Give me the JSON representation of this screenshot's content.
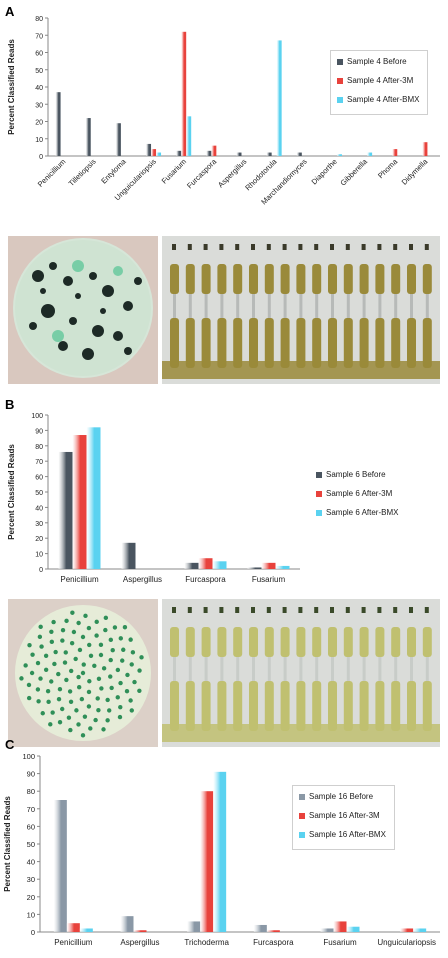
{
  "panels": [
    {
      "letter": "A",
      "chart_data": {
        "type": "bar",
        "ylabel": "Percent Classified Reads",
        "xlabel": "",
        "ylim": [
          0,
          80
        ],
        "yticks": [
          0,
          10,
          20,
          30,
          40,
          50,
          60,
          70,
          80
        ],
        "grid": false,
        "legend_position": "right",
        "categories": [
          "Penicillium",
          "Tilletiopsis",
          "Entyloma",
          "Unguiculariopsis",
          "Fusarium",
          "Furcaspora",
          "Aspergillus",
          "Rhodotorula",
          "Marchandiomyces",
          "Diaporthe",
          "Gibberella",
          "Phoma",
          "Didymella"
        ],
        "series": [
          {
            "name": "Sample 4 Before",
            "color": "#4a5560",
            "values": [
              37,
              22,
              19,
              7,
              3,
              3,
              2,
              2,
              2,
              0,
              0,
              0,
              0
            ]
          },
          {
            "name": "Sample 4 After-3M",
            "color": "#e8423c",
            "values": [
              0,
              0,
              0,
              4,
              72,
              6,
              0,
              0,
              0,
              0,
              0,
              4,
              8
            ]
          },
          {
            "name": "Sample 4 After-BMX",
            "color": "#5ad2f0",
            "values": [
              0,
              0,
              0,
              2,
              23,
              0,
              0,
              67,
              0,
              1,
              2,
              0,
              0
            ]
          }
        ]
      }
    },
    {
      "letter": "B",
      "chart_data": {
        "type": "bar",
        "ylabel": "Percent Classified Reads",
        "xlabel": "",
        "ylim": [
          0,
          100
        ],
        "yticks": [
          0,
          10,
          20,
          30,
          40,
          50,
          60,
          70,
          80,
          90,
          100
        ],
        "grid": false,
        "legend_position": "right",
        "categories": [
          "Penicillium",
          "Aspergillus",
          "Furcaspora",
          "Fusarium"
        ],
        "series": [
          {
            "name": "Sample 6 Before",
            "color": "#4a5560",
            "values": [
              76,
              17,
              4,
              1
            ]
          },
          {
            "name": "Sample 6 After-3M",
            "color": "#e8423c",
            "values": [
              87,
              0,
              7,
              4
            ]
          },
          {
            "name": "Sample 6 After-BMX",
            "color": "#5ad2f0",
            "values": [
              92,
              0,
              5,
              2
            ]
          }
        ]
      }
    },
    {
      "letter": "C",
      "chart_data": {
        "type": "bar",
        "ylabel": "Percent Classified Reads",
        "xlabel": "",
        "ylim": [
          0,
          100
        ],
        "yticks": [
          0,
          10,
          20,
          30,
          40,
          50,
          60,
          70,
          80,
          90,
          100
        ],
        "grid": false,
        "legend_position": "right",
        "categories": [
          "Penicillium",
          "Aspergillus",
          "Trichoderma",
          "Furcaspora",
          "Fusarium",
          "Unguiculariopsis"
        ],
        "series": [
          {
            "name": "Sample 16 Before",
            "color": "#8a98a6",
            "values": [
              75,
              9,
              6,
              4,
              2,
              0
            ]
          },
          {
            "name": "Sample 16 After-3M",
            "color": "#e8423c",
            "values": [
              5,
              1,
              80,
              1,
              6,
              2
            ]
          },
          {
            "name": "Sample 16 After-BMX",
            "color": "#5ad2f0",
            "values": [
              2,
              0,
              91,
              0,
              3,
              2
            ]
          }
        ]
      }
    }
  ],
  "photos": [
    {
      "name": "plate-photo-sample-4",
      "dish": "#dcecdf",
      "colonies": "#1d2a26"
    },
    {
      "name": "strip-photo-sample-4",
      "bg": "#d8dbd8",
      "fill": "#9a8a3a"
    },
    {
      "name": "plate-photo-sample-6",
      "dish": "#e4ecd9",
      "colonies": "#2f8f58"
    },
    {
      "name": "strip-photo-sample-6",
      "bg": "#d8dbd8",
      "fill": "#b4b866"
    }
  ]
}
